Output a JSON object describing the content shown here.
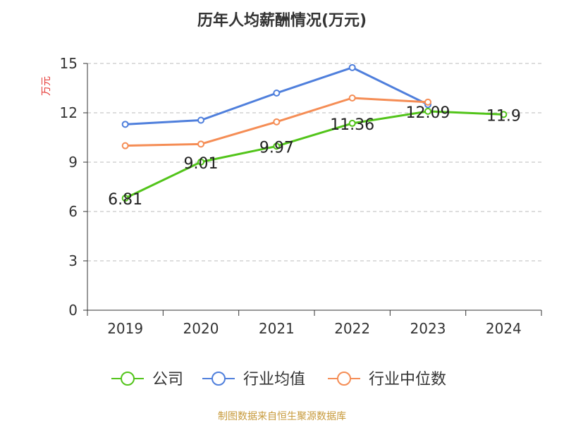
{
  "chart_data": {
    "type": "line",
    "title": "历年人均薪酬情况(万元)",
    "ylabel": "万元",
    "categories": [
      "2019",
      "2020",
      "2021",
      "2022",
      "2023",
      "2024"
    ],
    "ylim": [
      0,
      15
    ],
    "yticks": [
      0,
      3,
      6,
      9,
      12,
      15
    ],
    "grid": true,
    "legend_position": "bottom",
    "series": [
      {
        "name": "公司",
        "color": "#52c41a",
        "values": [
          6.81,
          9.01,
          9.97,
          11.36,
          12.09,
          11.9
        ],
        "labels": [
          "6.81",
          "9.01",
          "9.97",
          "11.36",
          "12.09",
          "11.9"
        ]
      },
      {
        "name": "行业均值",
        "color": "#4f7fdc",
        "values": [
          11.3,
          11.55,
          13.2,
          14.75,
          12.5,
          null
        ]
      },
      {
        "name": "行业中位数",
        "color": "#f58d55",
        "values": [
          10.0,
          10.1,
          11.45,
          12.9,
          12.65,
          null
        ]
      }
    ]
  },
  "source": "制图数据来自恒生聚源数据库",
  "colors": {
    "ylabel": "#e53935",
    "source": "#c79a3b",
    "axis": "#333333",
    "grid": "#bbbbbb"
  }
}
